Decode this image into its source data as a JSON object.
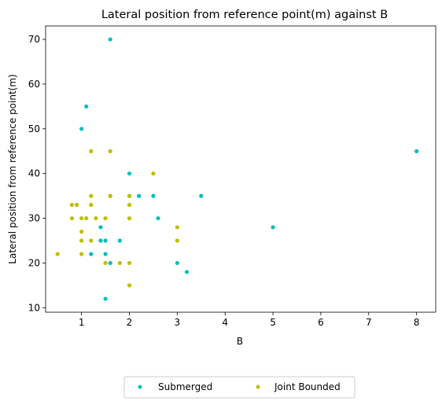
{
  "chart_data": {
    "type": "scatter",
    "title": "Lateral position from reference point(m) against B",
    "xlabel": "B",
    "ylabel": "Lateral position from reference point(m)",
    "xlim": [
      0.25,
      8.4
    ],
    "ylim": [
      9,
      73
    ],
    "xticks": [
      1,
      2,
      3,
      4,
      5,
      6,
      7,
      8
    ],
    "yticks": [
      10,
      20,
      30,
      40,
      50,
      60,
      70
    ],
    "grid": false,
    "legend_position": "bottom-center",
    "series": [
      {
        "name": "Submerged",
        "color": "#00bfbf",
        "points": [
          [
            1.6,
            70
          ],
          [
            1.1,
            55
          ],
          [
            1.0,
            50
          ],
          [
            2.0,
            40
          ],
          [
            1.6,
            35
          ],
          [
            2.0,
            35
          ],
          [
            2.2,
            35
          ],
          [
            2.5,
            35
          ],
          [
            3.5,
            35
          ],
          [
            2.6,
            30
          ],
          [
            1.4,
            28
          ],
          [
            1.4,
            25
          ],
          [
            1.5,
            25
          ],
          [
            1.8,
            25
          ],
          [
            1.2,
            22
          ],
          [
            1.5,
            22
          ],
          [
            1.6,
            20
          ],
          [
            3.0,
            20
          ],
          [
            3.2,
            18
          ],
          [
            1.5,
            12
          ],
          [
            5.0,
            28
          ],
          [
            8.0,
            45
          ]
        ]
      },
      {
        "name": "Joint Bounded",
        "color": "#bfbf00",
        "points": [
          [
            1.2,
            45
          ],
          [
            1.6,
            45
          ],
          [
            2.5,
            40
          ],
          [
            1.2,
            35
          ],
          [
            1.6,
            35
          ],
          [
            2.0,
            35
          ],
          [
            0.8,
            33
          ],
          [
            0.9,
            33
          ],
          [
            1.2,
            33
          ],
          [
            2.0,
            33
          ],
          [
            0.8,
            30
          ],
          [
            1.0,
            30
          ],
          [
            1.1,
            30
          ],
          [
            1.3,
            30
          ],
          [
            1.5,
            30
          ],
          [
            2.0,
            30
          ],
          [
            3.0,
            28
          ],
          [
            1.0,
            27
          ],
          [
            1.0,
            25
          ],
          [
            1.2,
            25
          ],
          [
            3.0,
            25
          ],
          [
            0.5,
            22
          ],
          [
            1.0,
            22
          ],
          [
            1.5,
            20
          ],
          [
            1.8,
            20
          ],
          [
            2.0,
            20
          ],
          [
            2.0,
            15
          ]
        ]
      }
    ]
  }
}
